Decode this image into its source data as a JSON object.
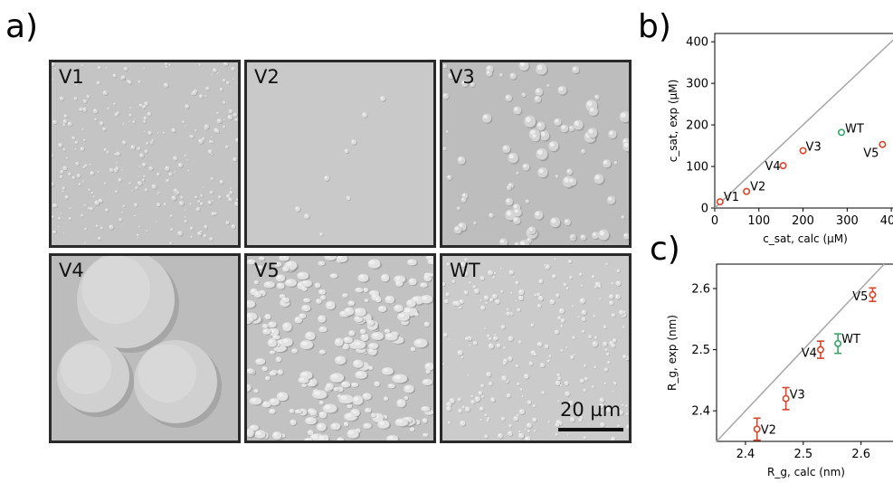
{
  "panels": {
    "a": "a)",
    "b": "b)",
    "c": "c)"
  },
  "micrographs": [
    {
      "label": "V1",
      "style": "fine-dense"
    },
    {
      "label": "V2",
      "style": "sparse"
    },
    {
      "label": "V3",
      "style": "medium"
    },
    {
      "label": "V4",
      "style": "large"
    },
    {
      "label": "V5",
      "style": "elongated-dense"
    },
    {
      "label": "WT",
      "style": "small-dense"
    }
  ],
  "scale_bar": {
    "label": "20 µm"
  },
  "chart_data": [
    {
      "type": "scatter",
      "panel": "b)",
      "xlabel": "c_sat, calc (µM)",
      "ylabel": "c_sat, exp (µM)",
      "xlim": [
        0,
        410
      ],
      "ylim": [
        0,
        420
      ],
      "xticks": [
        "0",
        "100",
        "200",
        "300",
        "400"
      ],
      "yticks": [
        "0",
        "100",
        "200",
        "300",
        "400"
      ],
      "xtick_values": [
        0,
        100,
        200,
        300,
        400
      ],
      "ytick_values": [
        0,
        100,
        200,
        300,
        400
      ],
      "diagonal": true,
      "points": [
        {
          "label": "V1",
          "x": 12,
          "y": 15,
          "color": "#d9442a"
        },
        {
          "label": "V2",
          "x": 72,
          "y": 40,
          "color": "#d9442a"
        },
        {
          "label": "V4",
          "x": 155,
          "y": 102,
          "color": "#d9442a"
        },
        {
          "label": "V3",
          "x": 200,
          "y": 138,
          "color": "#d9442a"
        },
        {
          "label": "WT",
          "x": 287,
          "y": 182,
          "color": "#3aa56b"
        },
        {
          "label": "V5",
          "x": 380,
          "y": 153,
          "color": "#d9442a"
        }
      ]
    },
    {
      "type": "scatter",
      "panel": "c)",
      "xlabel": "R_g, calc (nm)",
      "ylabel": "R_g, exp (nm)",
      "xlim": [
        2.35,
        2.66
      ],
      "ylim": [
        2.35,
        2.64
      ],
      "xticks": [
        "2.4",
        "2.5",
        "2.6"
      ],
      "yticks": [
        "2.4",
        "2.5",
        "2.6"
      ],
      "xtick_values": [
        2.4,
        2.5,
        2.6
      ],
      "ytick_values": [
        2.4,
        2.5,
        2.6
      ],
      "diagonal": true,
      "points": [
        {
          "label": "V2",
          "x": 2.42,
          "y": 2.37,
          "err": 0.018,
          "color": "#d9442a"
        },
        {
          "label": "V3",
          "x": 2.47,
          "y": 2.42,
          "err": 0.018,
          "color": "#d9442a"
        },
        {
          "label": "V4",
          "x": 2.53,
          "y": 2.5,
          "err": 0.014,
          "color": "#d9442a"
        },
        {
          "label": "WT",
          "x": 2.56,
          "y": 2.51,
          "err": 0.016,
          "color": "#3aa56b"
        },
        {
          "label": "V5",
          "x": 2.62,
          "y": 2.59,
          "err": 0.011,
          "color": "#d9442a"
        }
      ]
    }
  ]
}
